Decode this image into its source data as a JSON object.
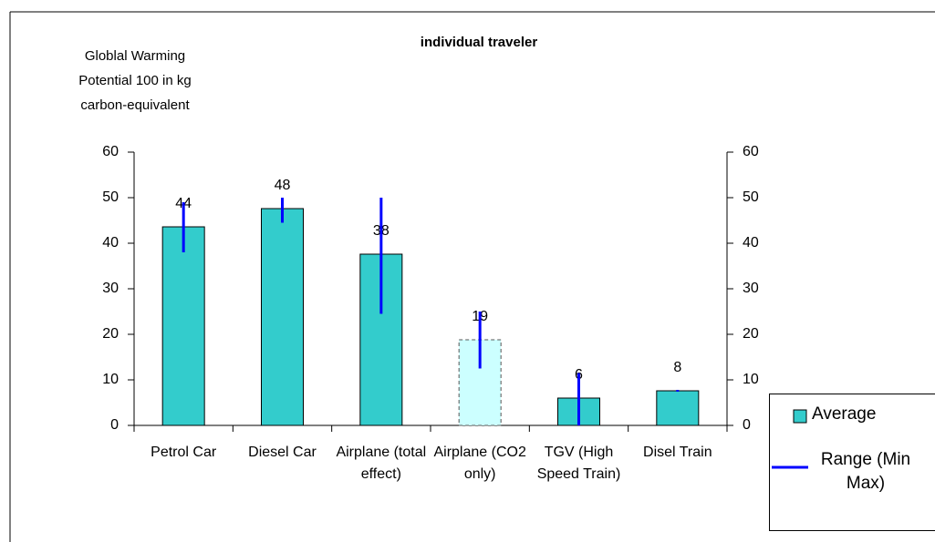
{
  "chart_data": {
    "type": "bar",
    "title": "individual traveler",
    "y_label": [
      "Globlal Warming",
      "Potential 100 in kg",
      "carbon-equivalent"
    ],
    "categories": [
      "Petrol Car",
      "Diesel Car",
      "Airplane (total effect)",
      "Airplane (CO2 only)",
      "TGV (High Speed Train)",
      "Disel Train"
    ],
    "series": [
      {
        "name": "Average",
        "color": "#33cccc",
        "point_colors": [
          "#33cccc",
          "#33cccc",
          "#33cccc",
          "#ccffff",
          "#33cccc",
          "#33cccc"
        ],
        "values": [
          43.6,
          47.6,
          37.6,
          18.8,
          6,
          7.6
        ],
        "value_labels": [
          "44",
          "48",
          "38",
          "19",
          "6",
          "8"
        ]
      },
      {
        "name": "Range (Min Max)",
        "type": "range",
        "color": "#0000ff",
        "axis": "y2",
        "min": [
          38,
          44.5,
          24.5,
          12.5,
          0,
          7.4
        ],
        "max": [
          49,
          50,
          50,
          25,
          11.5,
          7.8
        ]
      }
    ],
    "ylim": [
      0,
      60
    ],
    "yticks": [
      0,
      10,
      20,
      30,
      40,
      50,
      60
    ],
    "y2lim": [
      0,
      60
    ],
    "y2ticks": [
      0,
      10,
      20,
      30,
      40,
      50,
      60
    ],
    "grid": false,
    "legend": "bottom-right"
  }
}
